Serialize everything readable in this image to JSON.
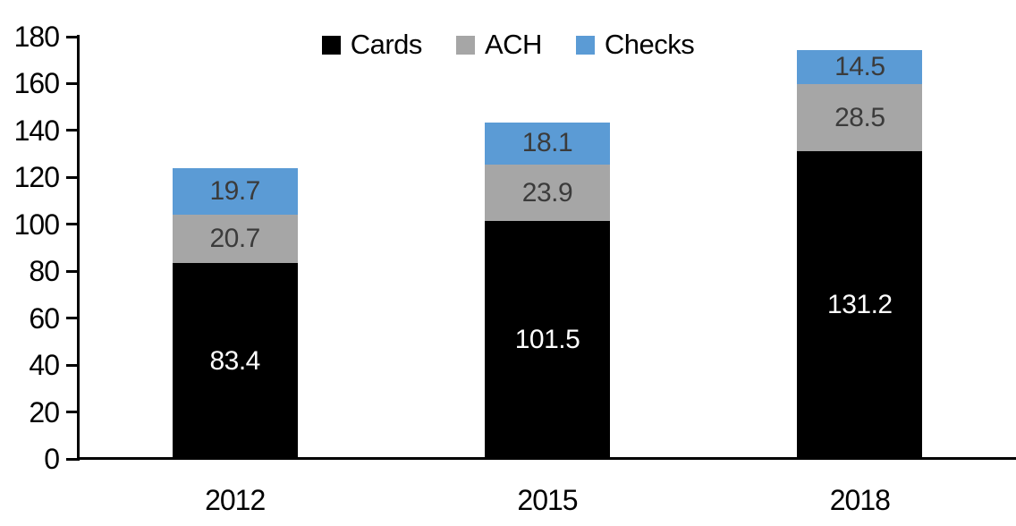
{
  "chart_data": {
    "type": "bar",
    "stacked": true,
    "title": "",
    "categories": [
      "2012",
      "2015",
      "2018"
    ],
    "series": [
      {
        "name": "Cards",
        "values": [
          83.4,
          101.5,
          131.2
        ],
        "color": "#000000",
        "label_color": "#ffffff"
      },
      {
        "name": "ACH",
        "values": [
          20.7,
          23.9,
          28.5
        ],
        "color": "#a6a6a6",
        "label_color": "#3b3b3b"
      },
      {
        "name": "Checks",
        "values": [
          19.7,
          18.1,
          14.5
        ],
        "color": "#5b9bd5",
        "label_color": "#3b3b3b"
      }
    ],
    "value_labels": {
      "Cards": [
        "83.4",
        "101.5",
        "131.2"
      ],
      "ACH": [
        "20.7",
        "23.9",
        "28.5"
      ],
      "Checks": [
        "19.7",
        "18.1",
        "14.5"
      ]
    },
    "ylim": [
      0,
      180
    ],
    "ytick_step": 20,
    "ytick_labels": [
      "0",
      "20",
      "40",
      "60",
      "80",
      "100",
      "120",
      "140",
      "160",
      "180"
    ],
    "xlabel": "",
    "ylabel": "",
    "grid": false,
    "legend_position": "top-center",
    "axis_color": "#000000",
    "background_color": "#ffffff"
  }
}
